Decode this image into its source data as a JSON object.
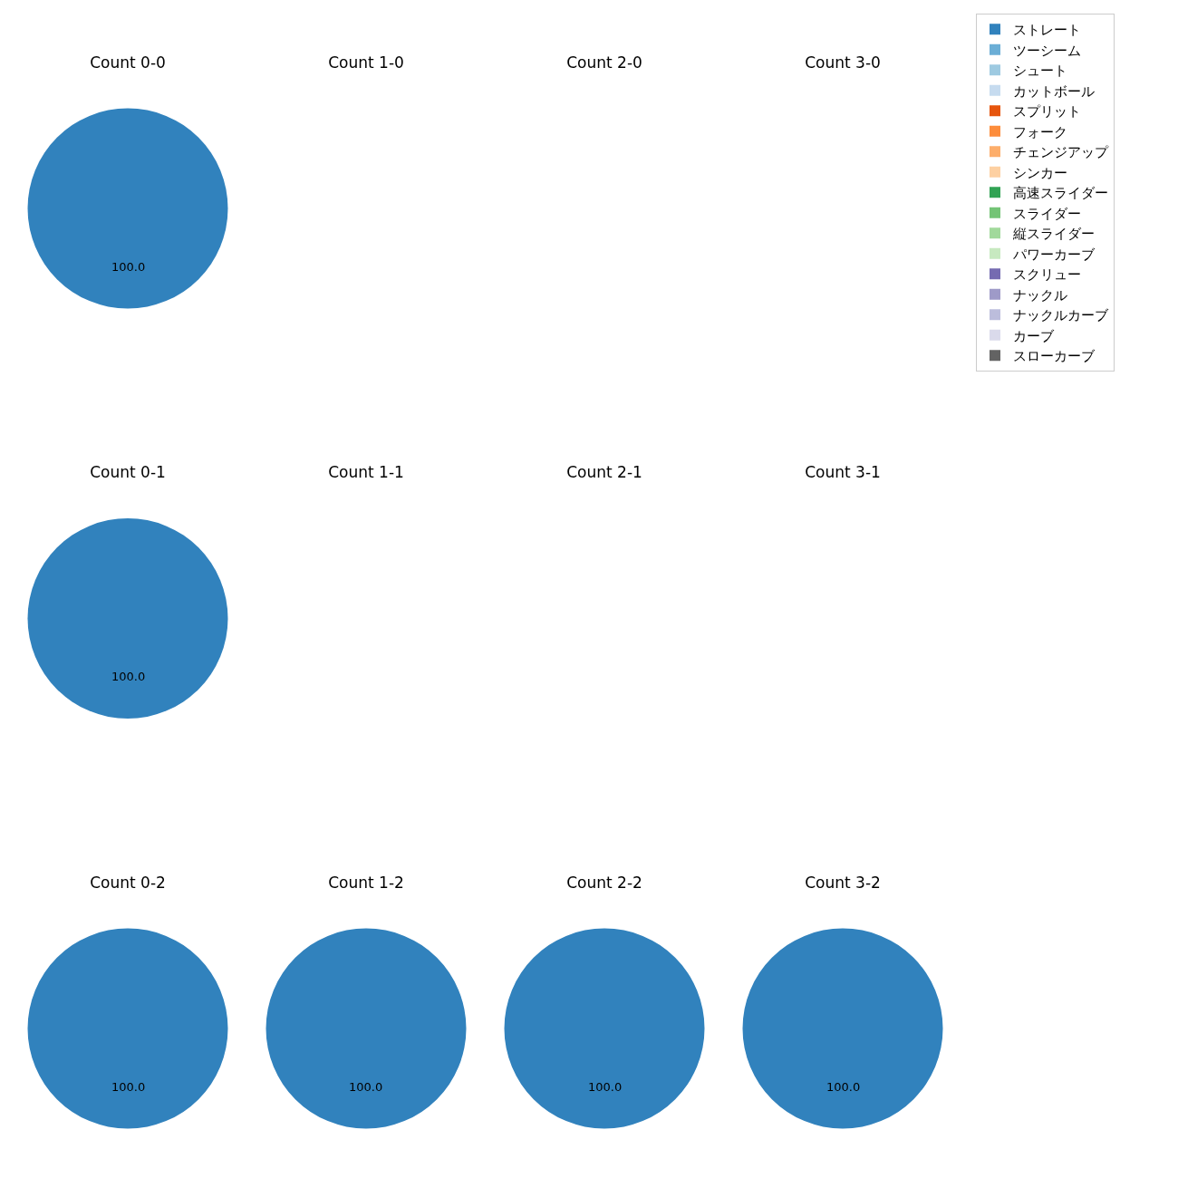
{
  "chart_data": [
    {
      "type": "pie",
      "title": "Count 0-0",
      "categories": [
        "ストレート",
        "ツーシーム",
        "シュート",
        "カットボール",
        "スプリット",
        "フォーク",
        "チェンジアップ",
        "シンカー",
        "高速スライダー",
        "スライダー",
        "縦スライダー",
        "パワーカーブ",
        "スクリュー",
        "ナックル",
        "ナックルカーブ",
        "カーブ",
        "スローカーブ"
      ],
      "values": [
        100,
        0,
        0,
        0,
        0,
        0,
        0,
        0,
        0,
        0,
        0,
        0,
        0,
        0,
        0,
        0,
        0
      ],
      "colors": [
        "#3182bd",
        "#6baed6",
        "#9ecae1",
        "#c6dbef",
        "#e6550d",
        "#fd8d3c",
        "#fdae6b",
        "#fdd0a2",
        "#31a354",
        "#74c476",
        "#a1d99b",
        "#c7e9c0",
        "#756bb1",
        "#9e9ac8",
        "#bcbddc",
        "#dadaeb",
        "#636363"
      ],
      "value_labels": [
        "100.0",
        null,
        null,
        null,
        null,
        null,
        null,
        null,
        null,
        null,
        null,
        null,
        null,
        null,
        null,
        null,
        null
      ],
      "legend": "top right"
    },
    {
      "type": "other",
      "title": "Count 1-0"
    },
    {
      "type": "other",
      "title": "Count 2-0"
    },
    {
      "type": "other",
      "title": "Count 3-0"
    },
    {
      "type": "pie",
      "title": "Count 0-1",
      "values": [
        100
      ],
      "colors": [
        "#3182bd"
      ],
      "value_labels": [
        "100.0"
      ]
    },
    {
      "type": "other",
      "title": "Count 1-1"
    },
    {
      "type": "other",
      "title": "Count 2-1"
    },
    {
      "type": "other",
      "title": "Count 3-1"
    },
    {
      "type": "pie",
      "title": "Count 0-2",
      "values": [
        100
      ],
      "colors": [
        "#3182bd"
      ],
      "value_labels": [
        "100.0"
      ]
    },
    {
      "type": "pie",
      "title": "Count 1-2",
      "values": [
        100
      ],
      "colors": [
        "#3182bd"
      ],
      "value_labels": [
        "100.0"
      ]
    },
    {
      "type": "pie",
      "title": "Count 2-2",
      "values": [
        100
      ],
      "colors": [
        "#3182bd"
      ],
      "value_labels": [
        "100.0"
      ]
    },
    {
      "type": "pie",
      "title": "Count 3-2",
      "values": [
        100
      ],
      "colors": [
        "#3182bd"
      ],
      "value_labels": [
        "100.0"
      ]
    }
  ]
}
